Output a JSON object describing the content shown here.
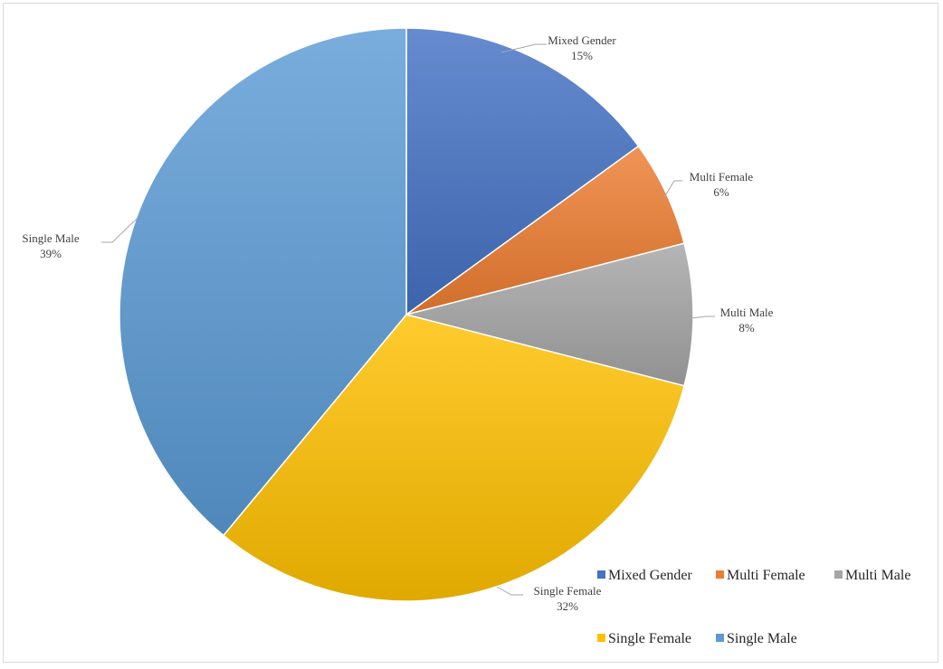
{
  "chart_data": {
    "type": "pie",
    "title": "",
    "categories": [
      "Mixed Gender",
      "Multi Female",
      "Multi Male",
      "Single Female",
      "Single Male"
    ],
    "values": [
      15,
      6,
      8,
      32,
      39
    ],
    "labels": [
      "Mixed Gender\n15%",
      "Multi Female\n6%",
      "Multi Male\n8%",
      "Single Female\n32%",
      "Single Male\n39%"
    ],
    "percent_labels": [
      "15%",
      "6%",
      "8%",
      "32%",
      "39%"
    ],
    "colors": [
      "#4472c4",
      "#ed7d31",
      "#a5a5a5",
      "#ffc000",
      "#5b9bd5"
    ],
    "start_angle": "12 o'clock",
    "direction": "clockwise",
    "legend": {
      "position": "bottom-right",
      "entries": [
        "Mixed Gender",
        "Multi Female",
        "Multi Male",
        "Single Female",
        "Single Male"
      ]
    }
  }
}
